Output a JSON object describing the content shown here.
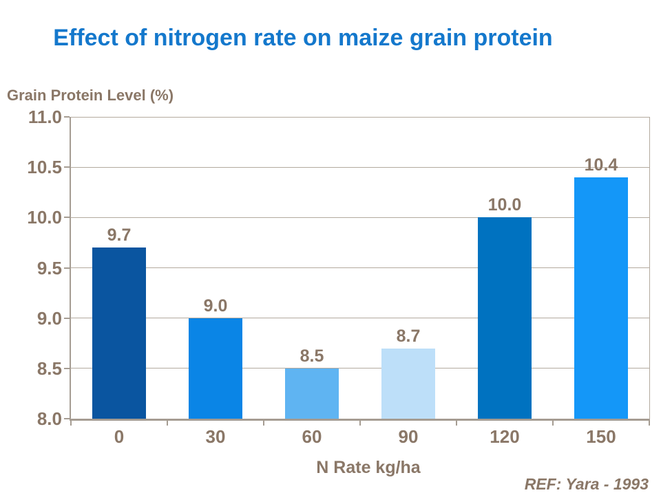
{
  "ref_note": "REF: Yara - 1993",
  "theme": {
    "background": "#FFFFFF",
    "title_color": "#1478CC",
    "text_color": "#8A7767",
    "axis_color": "#A59C92",
    "grid_color": "#B3A99E"
  },
  "chart_data": {
    "type": "bar",
    "title": "Effect of nitrogen rate on maize grain protein",
    "xlabel": "N Rate kg/ha",
    "ylabel": "Grain Protein Level (%)",
    "categories": [
      "0",
      "30",
      "60",
      "90",
      "120",
      "150"
    ],
    "values": [
      9.7,
      9.0,
      8.5,
      8.7,
      10.0,
      10.4
    ],
    "data_labels": [
      "9.7",
      "9.0",
      "8.5",
      "8.7",
      "10.0",
      "10.4"
    ],
    "bar_colors": [
      "#0A55A0",
      "#0A85E6",
      "#5FB4F2",
      "#BDDFF9",
      "#0072C0",
      "#1497F8"
    ],
    "ylim": [
      8.0,
      11.0
    ],
    "ytick_step": 0.5,
    "yticks": [
      "11.0",
      "10.5",
      "10.0",
      "9.5",
      "9.0",
      "8.5",
      "8.0"
    ],
    "grid": "horizontal",
    "legend": "none"
  }
}
